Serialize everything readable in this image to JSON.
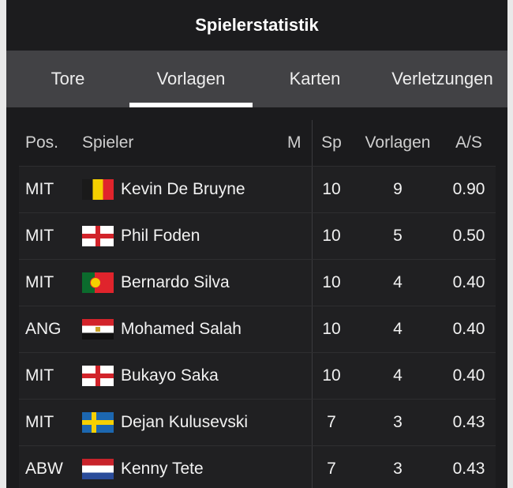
{
  "header": {
    "title": "Spielerstatistik"
  },
  "tabs": [
    {
      "label": "Tore"
    },
    {
      "label": "Vorlagen",
      "active": true
    },
    {
      "label": "Karten"
    },
    {
      "label": "Verletzungen"
    }
  ],
  "table": {
    "columns": {
      "pos": "Pos.",
      "player": "Spieler",
      "m": "M",
      "sp": "Sp",
      "vorlagen": "Vorlagen",
      "as": "A/S"
    },
    "rows": [
      {
        "pos": "MIT",
        "flag": "belgium-flag",
        "name": "Kevin De Bruyne",
        "sp": "10",
        "vorlagen": "9",
        "as": "0.90"
      },
      {
        "pos": "MIT",
        "flag": "england-flag",
        "name": "Phil Foden",
        "sp": "10",
        "vorlagen": "5",
        "as": "0.50"
      },
      {
        "pos": "MIT",
        "flag": "portugal-flag",
        "name": "Bernardo Silva",
        "sp": "10",
        "vorlagen": "4",
        "as": "0.40"
      },
      {
        "pos": "ANG",
        "flag": "egypt-flag",
        "name": "Mohamed Salah",
        "sp": "10",
        "vorlagen": "4",
        "as": "0.40"
      },
      {
        "pos": "MIT",
        "flag": "england-flag",
        "name": "Bukayo Saka",
        "sp": "10",
        "vorlagen": "4",
        "as": "0.40"
      },
      {
        "pos": "MIT",
        "flag": "sweden-flag",
        "name": "Dejan Kulusevski",
        "sp": "7",
        "vorlagen": "3",
        "as": "0.43"
      },
      {
        "pos": "ABW",
        "flag": "netherlands-flag",
        "name": "Kenny Tete",
        "sp": "7",
        "vorlagen": "3",
        "as": "0.43"
      }
    ]
  },
  "colors": {
    "panel": "#1b1b1d",
    "tabs_bg": "#424245",
    "active_indicator": "#ffffff",
    "row_bg": "#202022"
  }
}
